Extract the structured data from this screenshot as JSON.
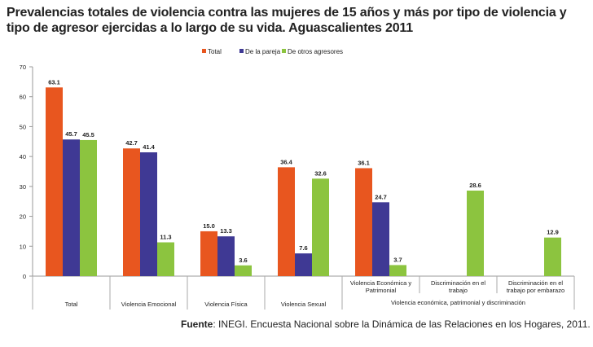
{
  "chart_data": {
    "type": "bar",
    "title": "Prevalencias totales de violencia contra las mujeres de 15 años y más por tipo de violencia y tipo de agresor ejercidas a lo largo de su vida. Aguascalientes 2011",
    "categories": [
      "Total",
      "Violencia Emocional",
      "Violencia Física",
      "Violencia Sexual",
      "Violencia Económica y Patrimonial",
      "Discriminación en el trabajo",
      "Discriminación en el trabajo por embarazo"
    ],
    "category_groups": [
      {
        "label": "Violencia económica, patrimonial y discriminación",
        "categories": [
          "Violencia Económica y Patrimonial",
          "Discriminación en el trabajo",
          "Discriminación en el trabajo por embarazo"
        ]
      }
    ],
    "series": [
      {
        "name": "Total",
        "color": "#E8561F",
        "values": [
          63.1,
          42.7,
          15.0,
          36.4,
          36.1,
          null,
          null
        ]
      },
      {
        "name": "De la pareja",
        "color": "#3F3994",
        "values": [
          45.7,
          41.4,
          13.3,
          7.6,
          24.7,
          null,
          null
        ]
      },
      {
        "name": "De otros agresores",
        "color": "#8CC43F",
        "values": [
          45.5,
          11.3,
          3.6,
          32.6,
          3.7,
          28.6,
          12.9
        ]
      }
    ],
    "ylim": [
      0,
      70
    ],
    "yticks": [
      0,
      10,
      20,
      30,
      40,
      50,
      60,
      70
    ],
    "legend": "top-center",
    "grid": false
  },
  "source": {
    "label": "Fuente",
    "text": ": INEGI. Encuesta Nacional sobre la Dinámica de las Relaciones en los Hogares, 2011."
  }
}
